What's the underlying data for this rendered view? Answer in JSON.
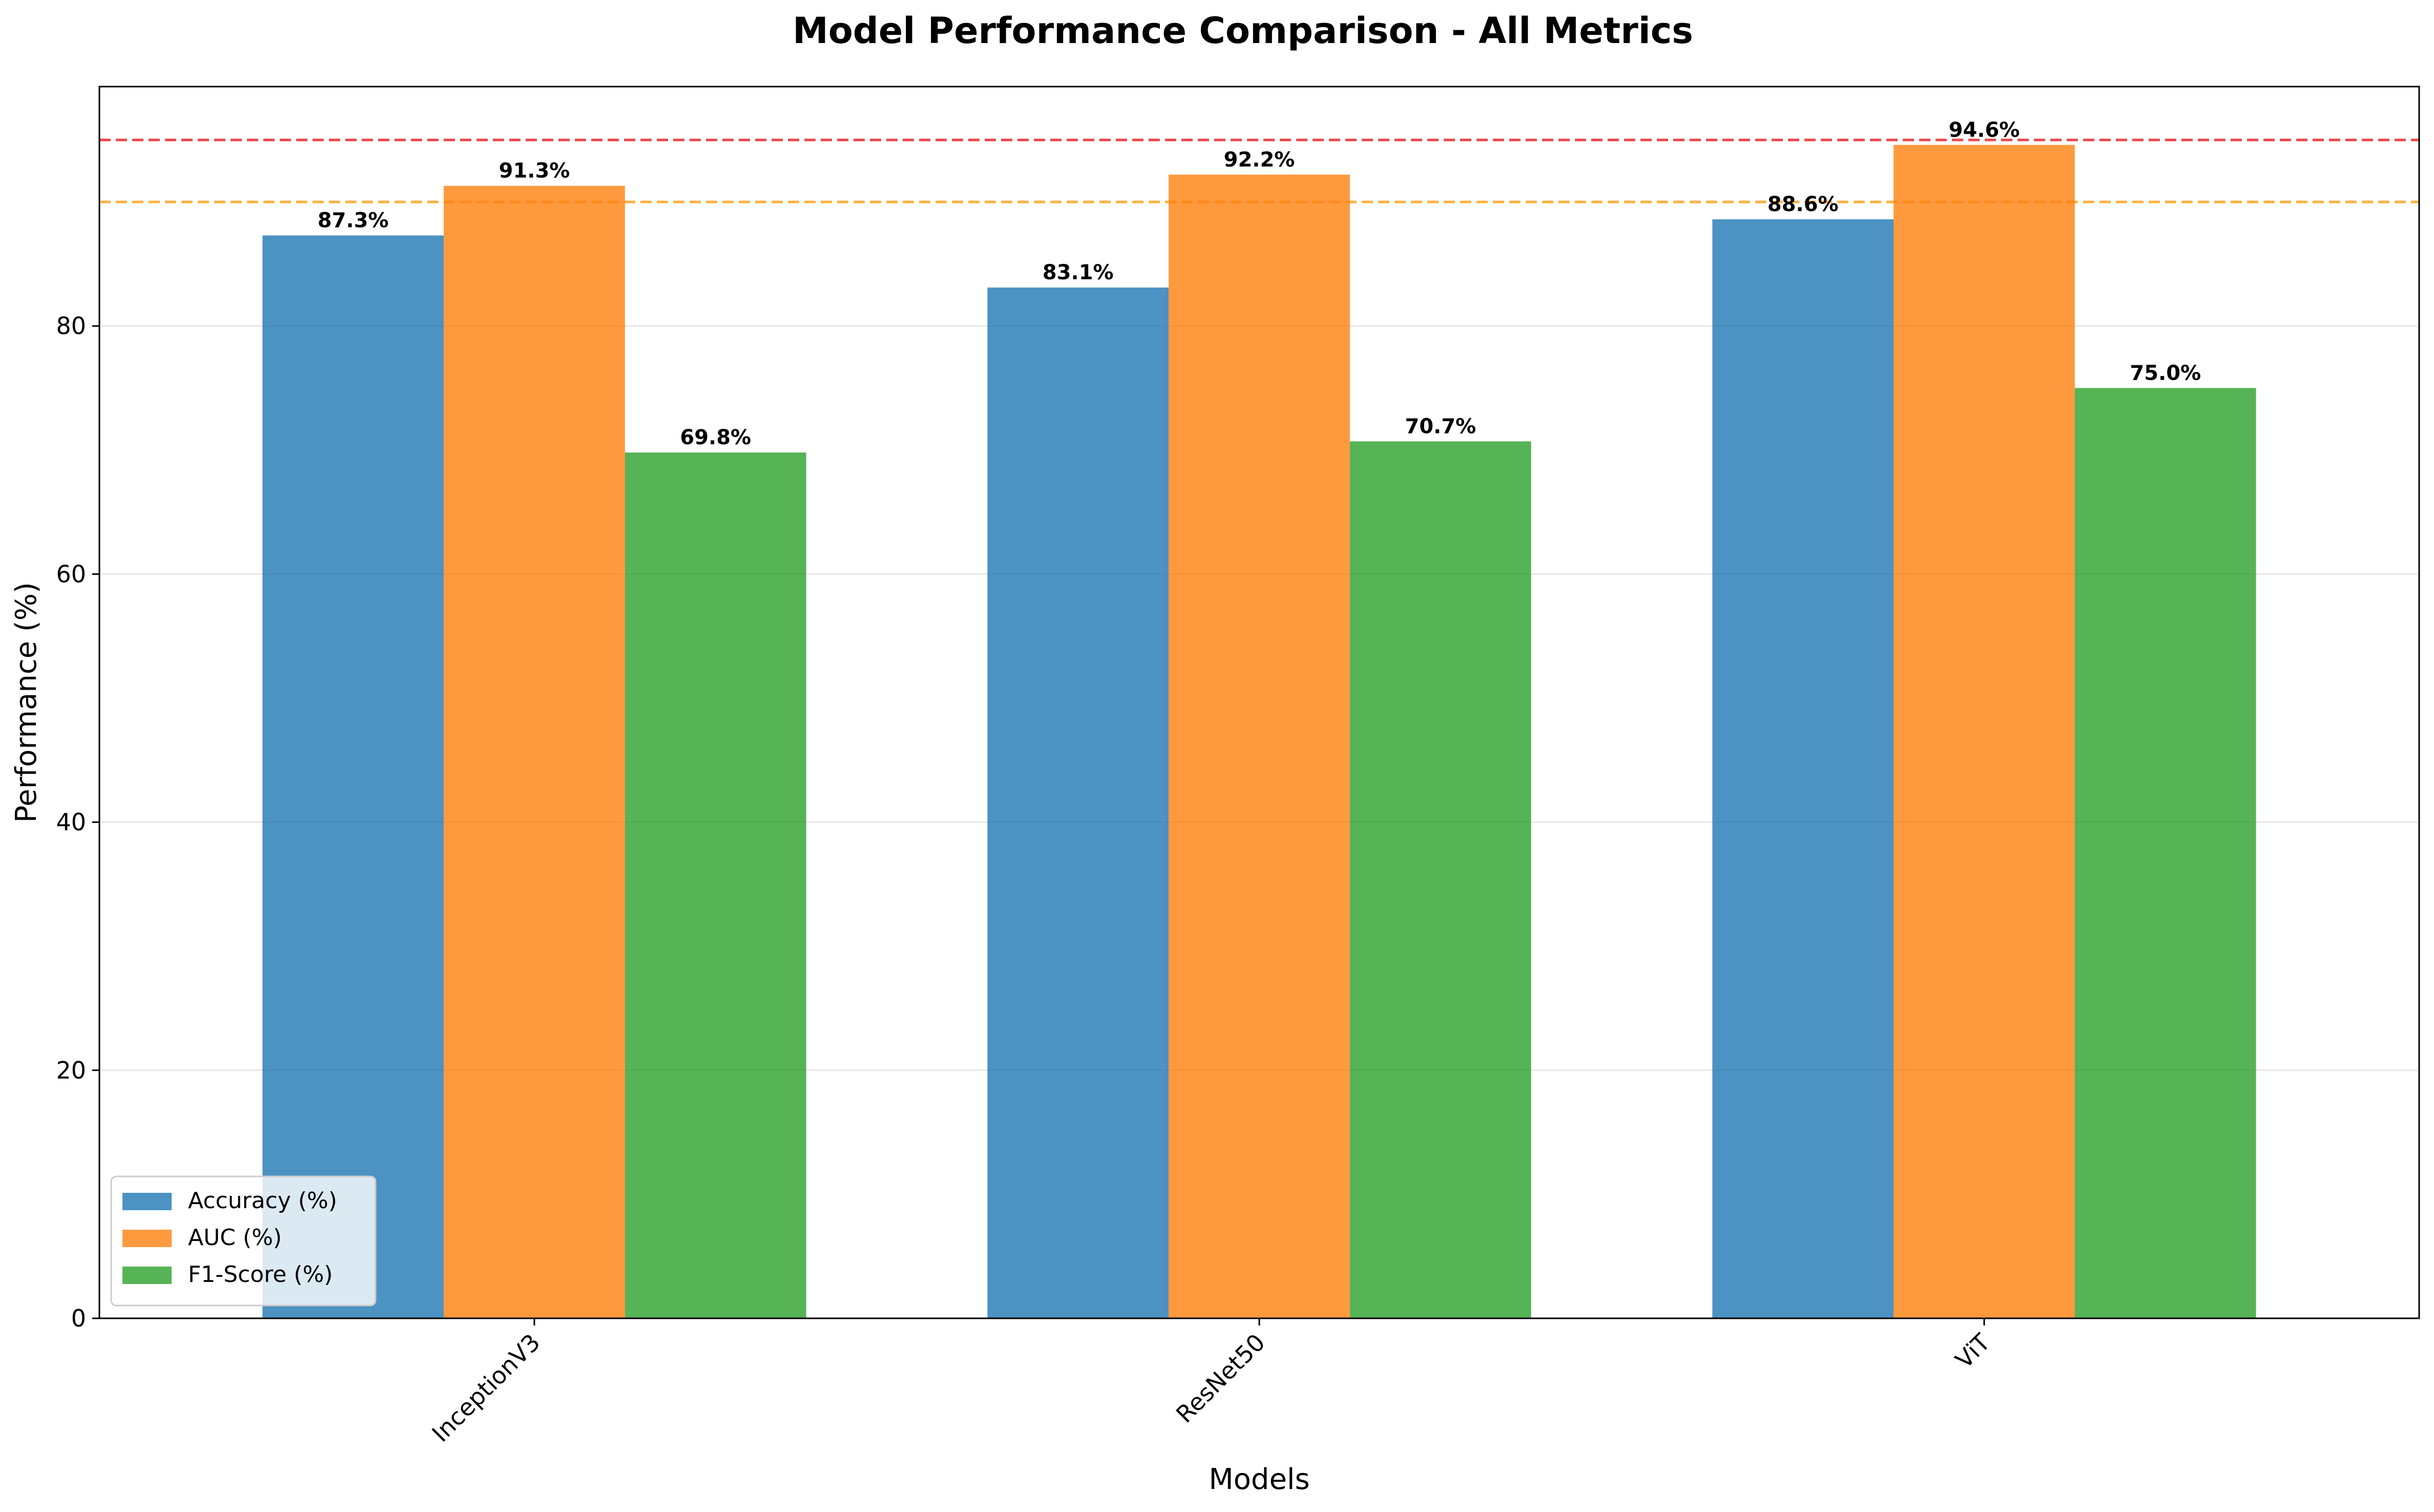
{
  "chart_data": {
    "type": "bar",
    "title": "Model Performance Comparison - All Metrics",
    "xlabel": "Models",
    "ylabel": "Performance (%)",
    "categories": [
      "InceptionV3",
      "ResNet50",
      "ViT"
    ],
    "series": [
      {
        "name": "Accuracy (%)",
        "values": [
          87.3,
          83.1,
          88.6
        ],
        "color": "#1f77b4"
      },
      {
        "name": "AUC (%)",
        "values": [
          91.3,
          92.2,
          94.6
        ],
        "color": "#ff7f0e"
      },
      {
        "name": "F1-Score (%)",
        "values": [
          69.8,
          70.7,
          75.0
        ],
        "color": "#2ca02c"
      }
    ],
    "data_labels": [
      [
        "87.3%",
        "83.1%",
        "88.6%"
      ],
      [
        "91.3%",
        "92.2%",
        "94.6%"
      ],
      [
        "69.8%",
        "70.7%",
        "75.0%"
      ]
    ],
    "yticks": [
      "0",
      "20",
      "40",
      "60",
      "80"
    ],
    "ylim": [
      0,
      99.3
    ],
    "reference_lines": [
      {
        "value": 95,
        "color": "#e8282c",
        "style": "dashed"
      },
      {
        "value": 90,
        "color": "#ffa41e",
        "style": "dashed"
      }
    ],
    "grid": "y",
    "legend_position": "lower-left",
    "bar_alpha": 0.8
  }
}
